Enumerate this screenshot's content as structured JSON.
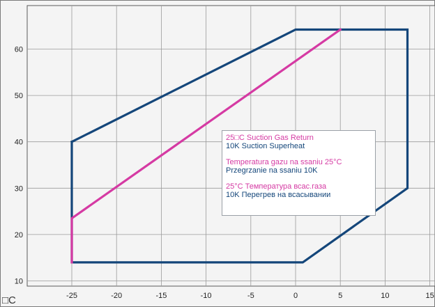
{
  "chart_data": {
    "type": "line",
    "xlim": [
      -30,
      15
    ],
    "ylim": [
      8,
      70
    ],
    "x_ticks": [
      -25,
      -20,
      -15,
      -10,
      -5,
      0,
      5,
      10,
      15
    ],
    "y_ticks": [
      10,
      20,
      30,
      40,
      50,
      60
    ],
    "x_tick_labels": [
      "-25",
      "-20",
      "-15",
      "-10",
      "-5",
      "0",
      "5",
      "10",
      "15"
    ],
    "y_tick_labels": [
      "10",
      "20",
      "30",
      "40",
      "50",
      "60"
    ],
    "x_unit": "□C",
    "grid": true,
    "legend_position": "center-right",
    "series": [
      {
        "color": "#14467a",
        "points": [
          [
            -25,
            40
          ],
          [
            0,
            64.2
          ],
          [
            12.5,
            64.2
          ],
          [
            12.5,
            30
          ],
          [
            0.8,
            14
          ],
          [
            -25,
            14
          ],
          [
            -25,
            40
          ]
        ]
      },
      {
        "color": "#d53aa3",
        "points": [
          [
            -25,
            14
          ],
          [
            -25,
            23.5
          ],
          [
            5,
            64.2
          ]
        ]
      }
    ],
    "legend_groups": [
      {
        "pink": "25□C Suction Gas Return",
        "blue": "10K Suction Superheat"
      },
      {
        "pink": "Temperatura gazu na ssaniu 25°C",
        "blue": "Przegrzanie na ssaniu 10K"
      },
      {
        "pink": "25°C Температура всас.газа",
        "blue": "10K Перегрев на всасывании"
      }
    ]
  },
  "colors": {
    "navy": "#14467a",
    "magenta": "#d53aa3",
    "plot_background": "#f4f4f4",
    "grid": "#9a9a9a"
  }
}
